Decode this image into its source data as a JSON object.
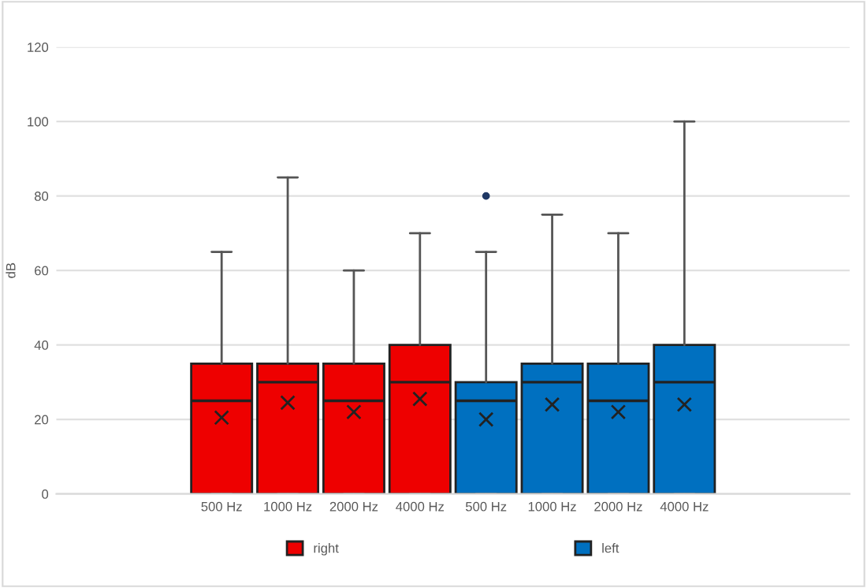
{
  "chart_data": {
    "type": "box",
    "ylabel": "dB",
    "categories": [
      null,
      null,
      "500 Hz",
      "1000 Hz",
      "2000 Hz",
      "4000 Hz",
      "500 Hz",
      "1000 Hz",
      "2000 Hz",
      "4000 Hz",
      null,
      null
    ],
    "series": [
      {
        "name": "right",
        "color": "#ee0000",
        "boxes": [
          null,
          null,
          {
            "low": 0,
            "q1": 0,
            "median": 25,
            "q3": 35,
            "high": 65,
            "mean": 20.5
          },
          {
            "low": 0,
            "q1": 0,
            "median": 30,
            "q3": 35,
            "high": 85,
            "mean": 24.5
          },
          {
            "low": 0,
            "q1": 0,
            "median": 25,
            "q3": 35,
            "high": 60,
            "mean": 22
          },
          {
            "low": 0,
            "q1": 0,
            "median": 30,
            "q3": 40,
            "high": 70,
            "mean": 25.5
          },
          null,
          null,
          null,
          null,
          null,
          null
        ]
      },
      {
        "name": "left",
        "color": "#0070c0",
        "boxes": [
          null,
          null,
          null,
          null,
          null,
          null,
          {
            "low": 0,
            "q1": 0,
            "median": 25,
            "q3": 30,
            "high": 65,
            "mean": 20,
            "outliers": [
              80
            ]
          },
          {
            "low": 0,
            "q1": 0,
            "median": 30,
            "q3": 35,
            "high": 75,
            "mean": 24
          },
          {
            "low": 0,
            "q1": 0,
            "median": 25,
            "q3": 35,
            "high": 70,
            "mean": 22
          },
          {
            "low": 0,
            "q1": 0,
            "median": 30,
            "q3": 40,
            "high": 100,
            "mean": 24
          },
          null,
          null
        ]
      }
    ],
    "ylim": [
      0,
      120
    ],
    "yticks": [
      0,
      20,
      40,
      60,
      80,
      100,
      120
    ],
    "grid": "y",
    "legend": "bottom"
  }
}
